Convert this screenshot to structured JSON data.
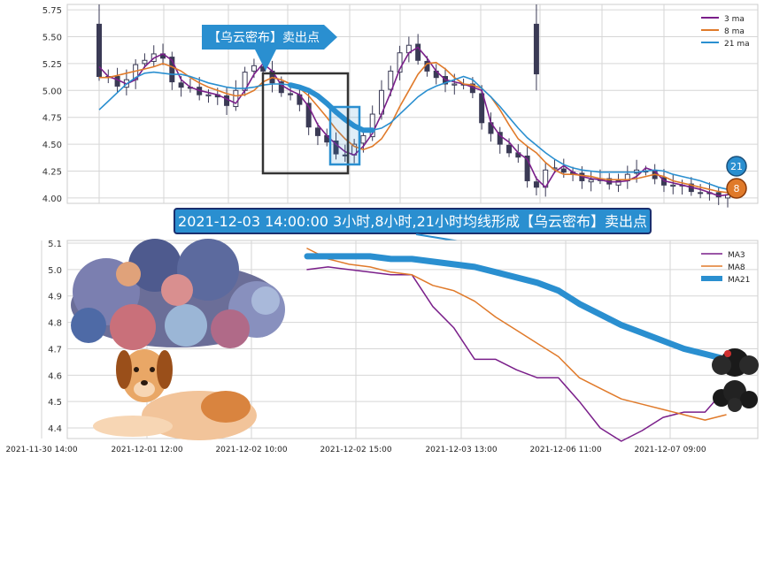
{
  "colors": {
    "ma3": "#7a1f8a",
    "ma8": "#e07a2a",
    "ma21": "#2a8fd0",
    "grid": "#d6d6d6",
    "bg": "#ffffff",
    "banner_bg": "#2a8fd0",
    "box_dark": "#333333",
    "box_blue": "#2a8fd0",
    "candle": "#3a3a55"
  },
  "icons": [
    "cloud-icon",
    "dog-icon",
    "dark-cloud-icon"
  ],
  "annotations": {
    "top_callout": "【乌云密布】卖出点",
    "main_banner": "2021-12-03 14:00:00 3小时,8小时,21小时均线形成【乌云密布】卖出点",
    "badge_21": "21",
    "badge_8": "8"
  },
  "chart_data": [
    {
      "type": "line",
      "ylim": [
        3.95,
        5.8
      ],
      "y_ticks": [
        "5.75",
        "5.50",
        "5.25",
        "5.00",
        "4.75",
        "4.50",
        "4.25",
        "4.00"
      ],
      "y_tick_values": [
        5.75,
        5.5,
        5.25,
        5.0,
        4.75,
        4.5,
        4.25,
        4.0
      ],
      "legend_position": "top-right",
      "grid": true,
      "series": [
        {
          "name": "3 ma",
          "values": [
            5.22,
            5.13,
            5.1,
            5.06,
            5.1,
            5.22,
            5.3,
            5.34,
            5.28,
            5.1,
            5.03,
            5.0,
            4.98,
            4.96,
            4.92,
            4.88,
            5.0,
            5.15,
            5.25,
            5.18,
            5.05,
            5.0,
            4.96,
            4.85,
            4.68,
            4.58,
            4.5,
            4.43,
            4.4,
            4.48,
            4.6,
            4.78,
            4.98,
            5.2,
            5.35,
            5.4,
            5.3,
            5.18,
            5.1,
            5.08,
            5.06,
            5.03,
            5.0,
            4.7,
            4.58,
            4.52,
            4.42,
            4.36,
            4.18,
            4.1,
            4.24,
            4.3,
            4.24,
            4.2,
            4.18,
            4.17,
            4.15,
            4.15,
            4.16,
            4.2,
            4.28,
            4.25,
            4.16,
            4.14,
            4.12,
            4.1,
            4.08,
            4.05,
            4.02,
            4.03
          ]
        },
        {
          "name": "8 ma",
          "values": [
            5.12,
            5.12,
            5.14,
            5.16,
            5.18,
            5.2,
            5.22,
            5.25,
            5.22,
            5.18,
            5.12,
            5.07,
            5.03,
            5.0,
            4.97,
            4.95,
            4.96,
            5.0,
            5.08,
            5.12,
            5.1,
            5.06,
            5.02,
            4.95,
            4.85,
            4.75,
            4.64,
            4.55,
            4.48,
            4.45,
            4.48,
            4.55,
            4.68,
            4.85,
            5.0,
            5.15,
            5.25,
            5.26,
            5.2,
            5.12,
            5.06,
            5.05,
            5.02,
            4.94,
            4.82,
            4.68,
            4.55,
            4.48,
            4.42,
            4.33,
            4.26,
            4.22,
            4.22,
            4.21,
            4.2,
            4.18,
            4.17,
            4.17,
            4.17,
            4.18,
            4.2,
            4.22,
            4.2,
            4.16,
            4.14,
            4.12,
            4.1,
            4.08,
            4.06,
            4.05
          ]
        },
        {
          "name": "21 ma",
          "values": [
            4.82,
            4.9,
            4.98,
            5.06,
            5.12,
            5.16,
            5.17,
            5.16,
            5.15,
            5.15,
            5.13,
            5.1,
            5.07,
            5.05,
            5.03,
            5.02,
            5.02,
            5.03,
            5.05,
            5.06,
            5.06,
            5.05,
            5.03,
            5.0,
            4.95,
            4.88,
            4.8,
            4.73,
            4.67,
            4.63,
            4.63,
            4.65,
            4.7,
            4.78,
            4.86,
            4.94,
            5.0,
            5.04,
            5.07,
            5.1,
            5.13,
            5.1,
            5.02,
            4.94,
            4.85,
            4.75,
            4.65,
            4.56,
            4.49,
            4.42,
            4.36,
            4.31,
            4.28,
            4.26,
            4.25,
            4.24,
            4.24,
            4.24,
            4.24,
            4.24,
            4.25,
            4.26,
            4.25,
            4.22,
            4.2,
            4.18,
            4.16,
            4.13,
            4.1,
            4.08
          ]
        }
      ]
    },
    {
      "type": "line",
      "ylim": [
        4.36,
        5.11
      ],
      "y_ticks": [
        "5.1",
        "5.0",
        "4.9",
        "4.8",
        "4.7",
        "4.6",
        "4.5",
        "4.4"
      ],
      "y_tick_values": [
        5.1,
        5.0,
        4.9,
        4.8,
        4.7,
        4.6,
        4.5,
        4.4
      ],
      "x_ticks": [
        "2021-11-30 14:00",
        "2021-12-01 12:00",
        "2021-12-02 10:00",
        "2021-12-02 15:00",
        "2021-12-03 13:00",
        "2021-12-06 11:00",
        "2021-12-07 09:00"
      ],
      "legend_position": "top-right",
      "grid": true,
      "series": [
        {
          "name": "MA3",
          "values": [
            5.0,
            5.01,
            5.0,
            4.99,
            4.98,
            4.98,
            4.86,
            4.78,
            4.66,
            4.66,
            4.62,
            4.59,
            4.59,
            4.5,
            4.4,
            4.35,
            4.39,
            4.44,
            4.46,
            4.46,
            4.55
          ]
        },
        {
          "name": "MA8",
          "values": [
            5.08,
            5.04,
            5.02,
            5.01,
            4.99,
            4.98,
            4.94,
            4.92,
            4.88,
            4.82,
            4.77,
            4.72,
            4.67,
            4.59,
            4.55,
            4.51,
            4.49,
            4.47,
            4.45,
            4.43,
            4.45
          ]
        },
        {
          "name": "MA21",
          "values": [
            5.05,
            5.05,
            5.05,
            5.05,
            5.04,
            5.04,
            5.03,
            5.02,
            5.01,
            4.99,
            4.97,
            4.95,
            4.92,
            4.87,
            4.83,
            4.79,
            4.76,
            4.73,
            4.7,
            4.68,
            4.66
          ]
        }
      ]
    }
  ]
}
